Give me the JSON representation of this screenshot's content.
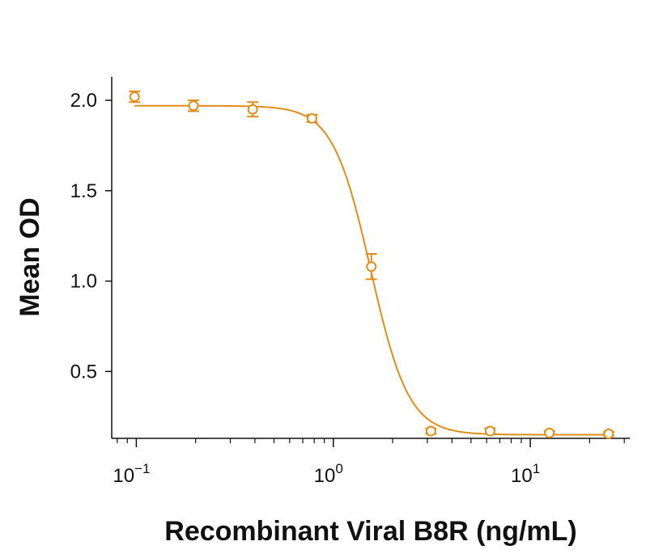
{
  "chart_data": {
    "type": "scatter",
    "xlabel": "Recombinant Viral B8R (ng/mL)",
    "ylabel": "Mean OD",
    "xscale": "log",
    "xlim": [
      0.075,
      32
    ],
    "ylim": [
      0.13,
      2.13
    ],
    "grid": false,
    "x_ticks": [
      {
        "value": 0.1,
        "base": "10",
        "exp": "−1"
      },
      {
        "value": 1,
        "base": "10",
        "exp": "0"
      },
      {
        "value": 10,
        "base": "10",
        "exp": "1"
      }
    ],
    "y_ticks": [
      {
        "value": 0.5,
        "label": "0.5"
      },
      {
        "value": 1.0,
        "label": "1.0"
      },
      {
        "value": 1.5,
        "label": "1.5"
      },
      {
        "value": 2.0,
        "label": "2.0"
      }
    ],
    "color": "#E08E1B",
    "series": [
      {
        "points": [
          {
            "x": 0.098,
            "y": 2.02,
            "err": 0.03
          },
          {
            "x": 0.195,
            "y": 1.97,
            "err": 0.03
          },
          {
            "x": 0.39,
            "y": 1.95,
            "err": 0.04
          },
          {
            "x": 0.78,
            "y": 1.9,
            "err": 0.02
          },
          {
            "x": 1.56,
            "y": 1.08,
            "err": 0.07
          },
          {
            "x": 3.13,
            "y": 0.17,
            "err": 0.015
          },
          {
            "x": 6.25,
            "y": 0.17,
            "err": 0.015
          },
          {
            "x": 12.5,
            "y": 0.16,
            "err": 0.01
          },
          {
            "x": 25,
            "y": 0.155,
            "err": 0.01
          }
        ],
        "fit": {
          "top": 1.97,
          "bottom": 0.15,
          "ec50": 1.55,
          "hill": 4.5
        }
      }
    ]
  }
}
